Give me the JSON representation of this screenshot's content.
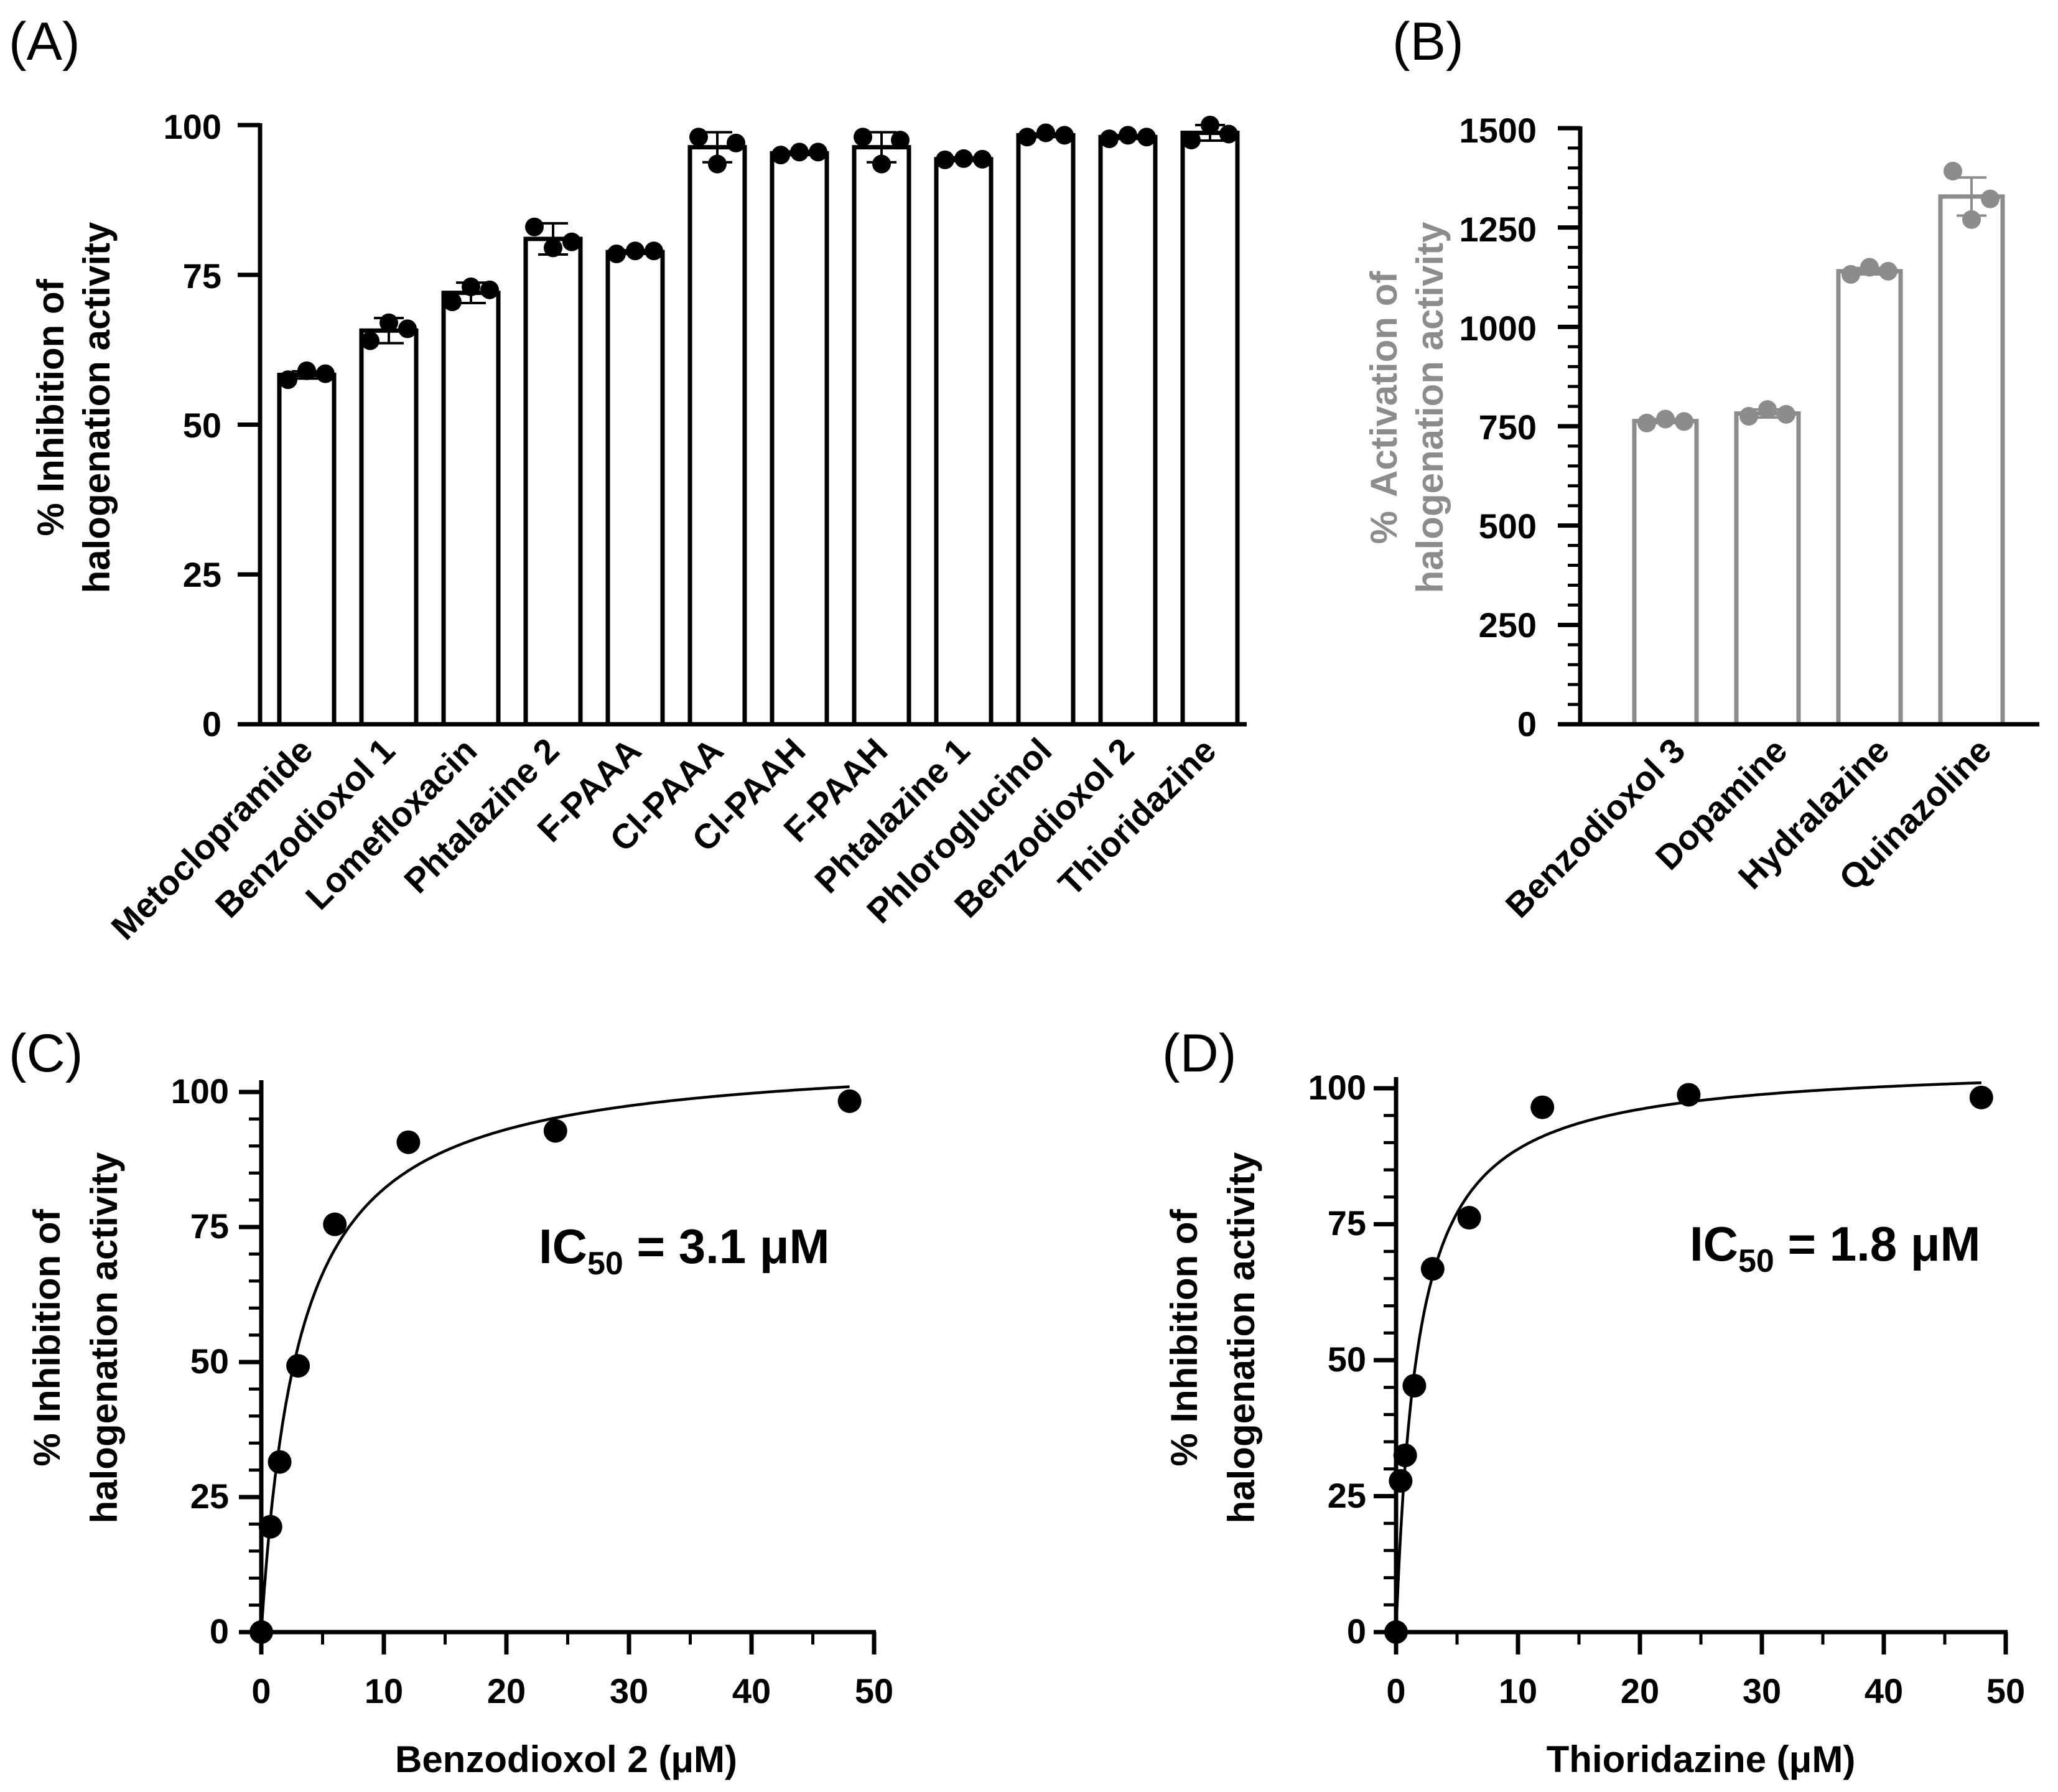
{
  "chart_data": [
    {
      "panel": "(A)",
      "type": "bar",
      "ylabel_lines": [
        "% Inhibition of",
        "halogenation activity"
      ],
      "ylim": [
        0,
        100
      ],
      "yticks": [
        "0",
        "25",
        "50",
        "75",
        "100"
      ],
      "color": "#000000",
      "categories": [
        "Metoclopramide",
        "Benzodioxol 1",
        "Lomefloxacin",
        "Phtalazine 2",
        "F-PAAA",
        "Cl-PAAA",
        "Cl-PAAH",
        "F-PAAH",
        "Phtalazine 1",
        "Phloroglucinol",
        "Benzodioxol 2",
        "Thioridazine"
      ],
      "values": [
        58.3,
        65.7,
        72.0,
        81.0,
        78.8,
        96.3,
        95.3,
        96.3,
        94.3,
        98.3,
        98.0,
        98.7
      ],
      "errors": [
        0.6,
        2.1,
        1.7,
        2.6,
        0.3,
        2.5,
        0.3,
        2.5,
        0.3,
        0.3,
        0.3,
        1.3
      ],
      "replicates": [
        [
          57.5,
          59,
          58.5
        ],
        [
          64,
          67,
          66
        ],
        [
          70.5,
          73,
          72.5
        ],
        [
          83,
          79.5,
          80.5
        ],
        [
          78.5,
          79,
          79
        ],
        [
          98,
          93.5,
          97
        ],
        [
          95,
          95.5,
          95.5
        ],
        [
          98,
          93.5,
          97.5
        ],
        [
          94.2,
          94.4,
          94.3
        ],
        [
          98,
          98.7,
          98.3
        ],
        [
          97.7,
          98.3,
          98
        ],
        [
          97.5,
          100,
          98.5
        ]
      ]
    },
    {
      "panel": "(B)",
      "type": "bar",
      "ylabel_prefix": "%",
      "ylabel_lines": [
        "Activation of",
        "halogenation activity"
      ],
      "ylim": [
        0,
        1500
      ],
      "yticks": [
        "0",
        "250",
        "500",
        "750",
        "1000",
        "1250",
        "1500"
      ],
      "color": "#8c8c8c",
      "categories": [
        "Benzodioxol 3",
        "Dopamine",
        "Hydralazine",
        "Quinazoline"
      ],
      "values": [
        763,
        782,
        1140,
        1328
      ],
      "errors": [
        5,
        10,
        8,
        48
      ],
      "replicates": [
        [
          758,
          768,
          762
        ],
        [
          775,
          792,
          780
        ],
        [
          1132,
          1150,
          1140
        ],
        [
          1392,
          1270,
          1322
        ]
      ]
    },
    {
      "panel": "(C)",
      "type": "scatter",
      "xlabel": "Benzodioxol 2 (μM)",
      "ylabel_lines": [
        "% Inhibition of",
        "halogenation activity"
      ],
      "xlim": [
        0,
        50
      ],
      "ylim": [
        0,
        100
      ],
      "xticks": [
        "0",
        "10",
        "20",
        "30",
        "40",
        "50"
      ],
      "yticks": [
        "0",
        "25",
        "50",
        "75",
        "100"
      ],
      "x": [
        0,
        0.75,
        1.5,
        3,
        6,
        12,
        24,
        48
      ],
      "y": [
        0,
        19.5,
        31.5,
        49.3,
        75.5,
        90.7,
        92.8,
        98.3
      ],
      "fit": {
        "model": "hyperbolic",
        "ic50": 3.1,
        "top": 107.5,
        "x_end": 48
      },
      "annotation": {
        "main": "IC",
        "sub": "50",
        "rest": " = 3.1 μM"
      }
    },
    {
      "panel": "(D)",
      "type": "scatter",
      "xlabel": "Thioridazine (μM)",
      "ylabel_lines": [
        "% Inhibition of",
        "halogenation activity"
      ],
      "xlim": [
        0,
        50
      ],
      "ylim": [
        0,
        100
      ],
      "xticks": [
        "0",
        "10",
        "20",
        "30",
        "40",
        "50"
      ],
      "yticks": [
        "0",
        "25",
        "50",
        "75",
        "100"
      ],
      "x": [
        0,
        0.375,
        0.75,
        1.5,
        3,
        6,
        12,
        24,
        48
      ],
      "y": [
        0,
        27.8,
        32.5,
        45.3,
        66.8,
        76.2,
        96.5,
        98.8,
        98.3
      ],
      "fit": {
        "model": "hyperbolic",
        "ic50": 1.8,
        "top": 104.8,
        "x_end": 48
      },
      "annotation": {
        "main": "IC",
        "sub": "50",
        "rest": " = 1.8 μM"
      }
    }
  ]
}
